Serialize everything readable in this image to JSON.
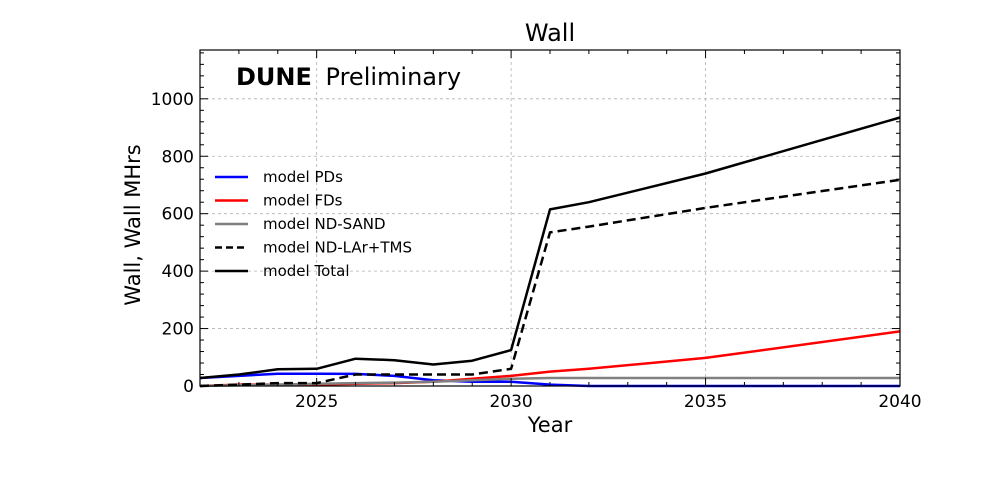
{
  "chart_data": {
    "type": "line",
    "title": "Wall",
    "xlabel": "Year",
    "ylabel": "Wall, Wall MHrs",
    "xlim": [
      2022,
      2040
    ],
    "ylim": [
      0,
      1170
    ],
    "x_ticks": [
      2025,
      2030,
      2035,
      2040
    ],
    "x_tick_labels": [
      "2025",
      "2030",
      "2035",
      "2040"
    ],
    "y_ticks": [
      0,
      200,
      400,
      600,
      800,
      1000
    ],
    "y_tick_labels": [
      "0",
      "200",
      "400",
      "600",
      "800",
      "1000"
    ],
    "grid": true,
    "legend_position": "center-left",
    "annotation": {
      "bold": "DUNE",
      "rest": "Preliminary"
    },
    "series": [
      {
        "name": "model PDs",
        "color": "#0000ff",
        "dash": "solid",
        "x": [
          2022,
          2023,
          2024,
          2025,
          2026,
          2027,
          2028,
          2029,
          2030,
          2031,
          2032,
          2035,
          2040
        ],
        "y": [
          28,
          35,
          43,
          43,
          42,
          35,
          20,
          15,
          15,
          5,
          0,
          0,
          0
        ]
      },
      {
        "name": "model FDs",
        "color": "#ff0000",
        "dash": "solid",
        "x": [
          2022,
          2023,
          2024,
          2025,
          2026,
          2027,
          2028,
          2029,
          2030,
          2031,
          2032,
          2035,
          2040
        ],
        "y": [
          0,
          5,
          5,
          5,
          8,
          10,
          15,
          25,
          35,
          50,
          60,
          98,
          190
        ]
      },
      {
        "name": "model ND-SAND",
        "color": "#808080",
        "dash": "solid",
        "x": [
          2022,
          2024,
          2025,
          2026,
          2027,
          2028,
          2029,
          2030,
          2031,
          2035,
          2040
        ],
        "y": [
          0,
          5,
          8,
          10,
          12,
          15,
          20,
          25,
          28,
          28,
          28
        ]
      },
      {
        "name": "model ND-LAr+TMS",
        "color": "#000000",
        "dash": "dashed",
        "x": [
          2022,
          2023,
          2024,
          2025,
          2026,
          2027,
          2028,
          2029,
          2030,
          2031,
          2032,
          2035,
          2040
        ],
        "y": [
          0,
          5,
          10,
          10,
          40,
          40,
          40,
          40,
          60,
          535,
          555,
          620,
          718
        ]
      },
      {
        "name": "model Total",
        "color": "#000000",
        "dash": "solid",
        "x": [
          2022,
          2023,
          2024,
          2025,
          2026,
          2027,
          2028,
          2029,
          2030,
          2031,
          2032,
          2035,
          2040
        ],
        "y": [
          28,
          40,
          58,
          60,
          95,
          90,
          75,
          88,
          125,
          615,
          640,
          740,
          935
        ]
      }
    ]
  }
}
